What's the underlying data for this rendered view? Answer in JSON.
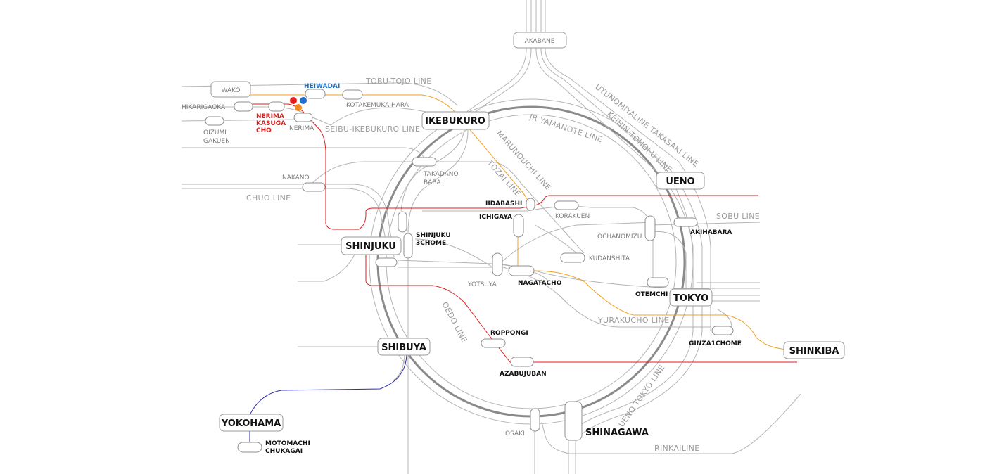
{
  "colors": {
    "line_gray": "#b4b4b4",
    "yamanote": "#8a8a8a",
    "oedo": "#e01e1e",
    "yurakucho": "#f0a020",
    "yokohama_line": "#2a2ab0",
    "heiwadai_label": "#1e6fc0",
    "nerima_kasugacho_label": "#e01e1e",
    "dot_red": "#e61e1e",
    "dot_blue": "#1e6fd0",
    "dot_orange": "#f08a1e"
  },
  "line_labels": {
    "tobu_tojo": "TOBU-TOJO LINE",
    "seibu_ikebukuro": "SEIBU-IKEBUKURO LINE",
    "jr_yamanote": "JR YAMANOTE LINE",
    "utsunomiya": "UTUNOMIYALINE TAKASAKI LINE",
    "keihin_tohoku": "KEIHIN TOHOKU LINE",
    "marunouchi": "MARUNOUCHI LINE",
    "tozai": "TOZAI LINE",
    "chuo": "CHUO LINE",
    "sobu": "SOBU LINE",
    "oedo": "OEDO LINE",
    "yurakucho": "YURAKUCHO LINE",
    "ueno_tokyo": "UENO TOKYO LINE",
    "rinkai": "RINKAILINE"
  },
  "stations": {
    "akabane": "AKABANE",
    "wako": "WAKO",
    "heiwadai": "HEIWADAI",
    "hikarigaoka": "HIKARIGAOKA",
    "kotakemukaihara": "KOTAKEMUKAIHARA",
    "nerima_kasugacho": [
      "NERIMA",
      "KASUGA",
      "CHO"
    ],
    "nerima": "NERIMA",
    "oizumi_gakuen": [
      "OIZUMI",
      "GAKUEN"
    ],
    "ikebukuro": "IKEBUKURO",
    "ueno": "UENO",
    "takadanobaba": [
      "TAKADANO",
      "BABA"
    ],
    "nakano": "NAKANO",
    "iidabashi": "IIDABASHI",
    "korakuen": "KORAKUEN",
    "ichigaya": "ICHIGAYA",
    "akihabara": "AKIHABARA",
    "ochanomizu": "OCHANOMIZU",
    "shinjuku": "SHINJUKU",
    "shinjuku_3chome": [
      "SHINJUKU",
      "3CHOME"
    ],
    "kudanshita": "KUDANSHITA",
    "yotsuya": "YOTSUYA",
    "nagatacho": "NAGATACHO",
    "otemachi": "OTEMCHI",
    "tokyo": "TOKYO",
    "roppongi": "ROPPONGI",
    "ginza_1chome": "GINZA1CHOME",
    "shinkiba": "SHINKIBA",
    "shibuya": "SHIBUYA",
    "azabujuban": "AZABUJUBAN",
    "yokohama": "YOKOHAMA",
    "motomachi_chukagai": [
      "MOTOMACHI",
      "CHUKAGAI"
    ],
    "osaki": "OSAKI",
    "shinagawa": "SHINAGAWA"
  }
}
